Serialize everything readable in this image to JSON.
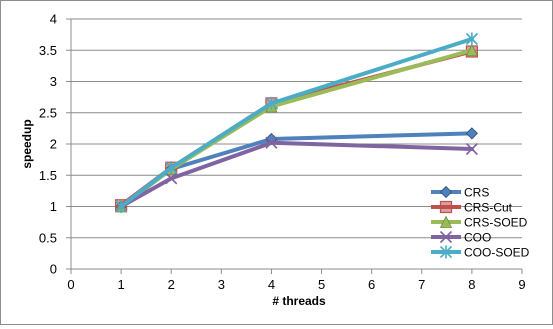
{
  "chart_data": {
    "type": "line",
    "xlabel": "# threads",
    "ylabel": "speedup",
    "xlim": [
      0,
      9
    ],
    "ylim": [
      0,
      4
    ],
    "x_ticks": [
      "0",
      "1",
      "2",
      "3",
      "4",
      "5",
      "6",
      "7",
      "8",
      "9"
    ],
    "y_ticks": [
      "0",
      "0.5",
      "1",
      "1.5",
      "2",
      "2.5",
      "3",
      "3.5",
      "4"
    ],
    "grid": "horizontal",
    "legend_position": "bottom-right",
    "x": [
      1,
      2,
      4,
      8
    ],
    "series": [
      {
        "name": "CRS",
        "values": [
          1.0,
          1.6,
          2.08,
          2.17
        ],
        "color": "#4f81bd",
        "marker": "diamond"
      },
      {
        "name": "CRS-Cut",
        "values": [
          1.02,
          1.62,
          2.65,
          3.48
        ],
        "color": "#c0504d",
        "marker": "square"
      },
      {
        "name": "CRS-SOED",
        "values": [
          1.0,
          1.6,
          2.6,
          3.5
        ],
        "color": "#9bbb59",
        "marker": "triangle"
      },
      {
        "name": "COO",
        "values": [
          1.0,
          1.45,
          2.02,
          1.92
        ],
        "color": "#8064a2",
        "marker": "x"
      },
      {
        "name": "COO-SOED",
        "values": [
          1.0,
          1.62,
          2.65,
          3.68
        ],
        "color": "#4bacc6",
        "marker": "star"
      }
    ]
  }
}
